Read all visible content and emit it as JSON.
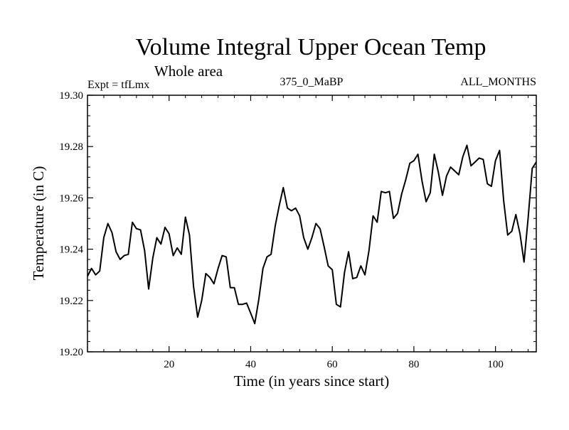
{
  "chart_data": {
    "type": "line",
    "title": "Volume Integral Upper Ocean Temp",
    "subtitle": "Whole area",
    "annotations": {
      "left": "Expt = tfLmx",
      "center": "375_0_MaBP",
      "right": "ALL_MONTHS"
    },
    "xlabel": "Time (in years since start)",
    "ylabel": "Temperature (in C)",
    "xlim": [
      0,
      110
    ],
    "ylim": [
      19.2,
      19.3
    ],
    "xticks": [
      20,
      40,
      60,
      80,
      100
    ],
    "yticks": [
      "19.20",
      "19.22",
      "19.24",
      "19.26",
      "19.28",
      "19.30"
    ],
    "series": [
      {
        "name": "Volume Integral Upper Ocean Temp",
        "color": "#000000",
        "x": [
          0,
          1,
          2,
          3,
          4,
          5,
          6,
          7,
          8,
          9,
          10,
          11,
          12,
          13,
          14,
          15,
          16,
          17,
          18,
          19,
          20,
          21,
          22,
          23,
          24,
          25,
          26,
          27,
          28,
          29,
          30,
          31,
          32,
          33,
          34,
          35,
          36,
          37,
          38,
          39,
          40,
          41,
          42,
          43,
          44,
          45,
          46,
          47,
          48,
          49,
          50,
          51,
          52,
          53,
          54,
          55,
          56,
          57,
          58,
          59,
          60,
          61,
          62,
          63,
          64,
          65,
          66,
          67,
          68,
          69,
          70,
          71,
          72,
          73,
          74,
          75,
          76,
          77,
          78,
          79,
          80,
          81,
          82,
          83,
          84,
          85,
          86,
          87,
          88,
          89,
          90,
          91,
          92,
          93,
          94,
          95,
          96,
          97,
          98,
          99,
          100,
          101,
          102,
          103,
          104,
          105,
          106,
          107,
          108,
          109,
          110
        ],
        "values": [
          19.2295,
          19.2325,
          19.23,
          19.2315,
          19.2445,
          19.25,
          19.2465,
          19.239,
          19.236,
          19.2375,
          19.238,
          19.2505,
          19.248,
          19.2475,
          19.2395,
          19.2245,
          19.2365,
          19.2445,
          19.242,
          19.2485,
          19.246,
          19.2375,
          19.2405,
          19.238,
          19.2525,
          19.2455,
          19.2255,
          19.2135,
          19.22,
          19.2305,
          19.229,
          19.2265,
          19.2325,
          19.2375,
          19.237,
          19.225,
          19.225,
          19.2185,
          19.2185,
          19.219,
          19.215,
          19.211,
          19.2205,
          19.2325,
          19.237,
          19.238,
          19.249,
          19.257,
          19.264,
          19.256,
          19.255,
          19.256,
          19.253,
          19.2445,
          19.24,
          19.2445,
          19.25,
          19.248,
          19.241,
          19.2335,
          19.232,
          19.2185,
          19.2175,
          19.231,
          19.239,
          19.2285,
          19.229,
          19.2335,
          19.23,
          19.2395,
          19.253,
          19.2505,
          19.2625,
          19.262,
          19.2625,
          19.252,
          19.254,
          19.2615,
          19.267,
          19.2735,
          19.2745,
          19.277,
          19.2665,
          19.2585,
          19.262,
          19.277,
          19.27,
          19.261,
          19.2685,
          19.272,
          19.2705,
          19.269,
          19.276,
          19.2805,
          19.2725,
          19.274,
          19.2755,
          19.275,
          19.2655,
          19.2645,
          19.2745,
          19.2785,
          19.259,
          19.2455,
          19.247,
          19.2535,
          19.246,
          19.235,
          19.252,
          19.2715,
          19.274
        ]
      }
    ]
  }
}
